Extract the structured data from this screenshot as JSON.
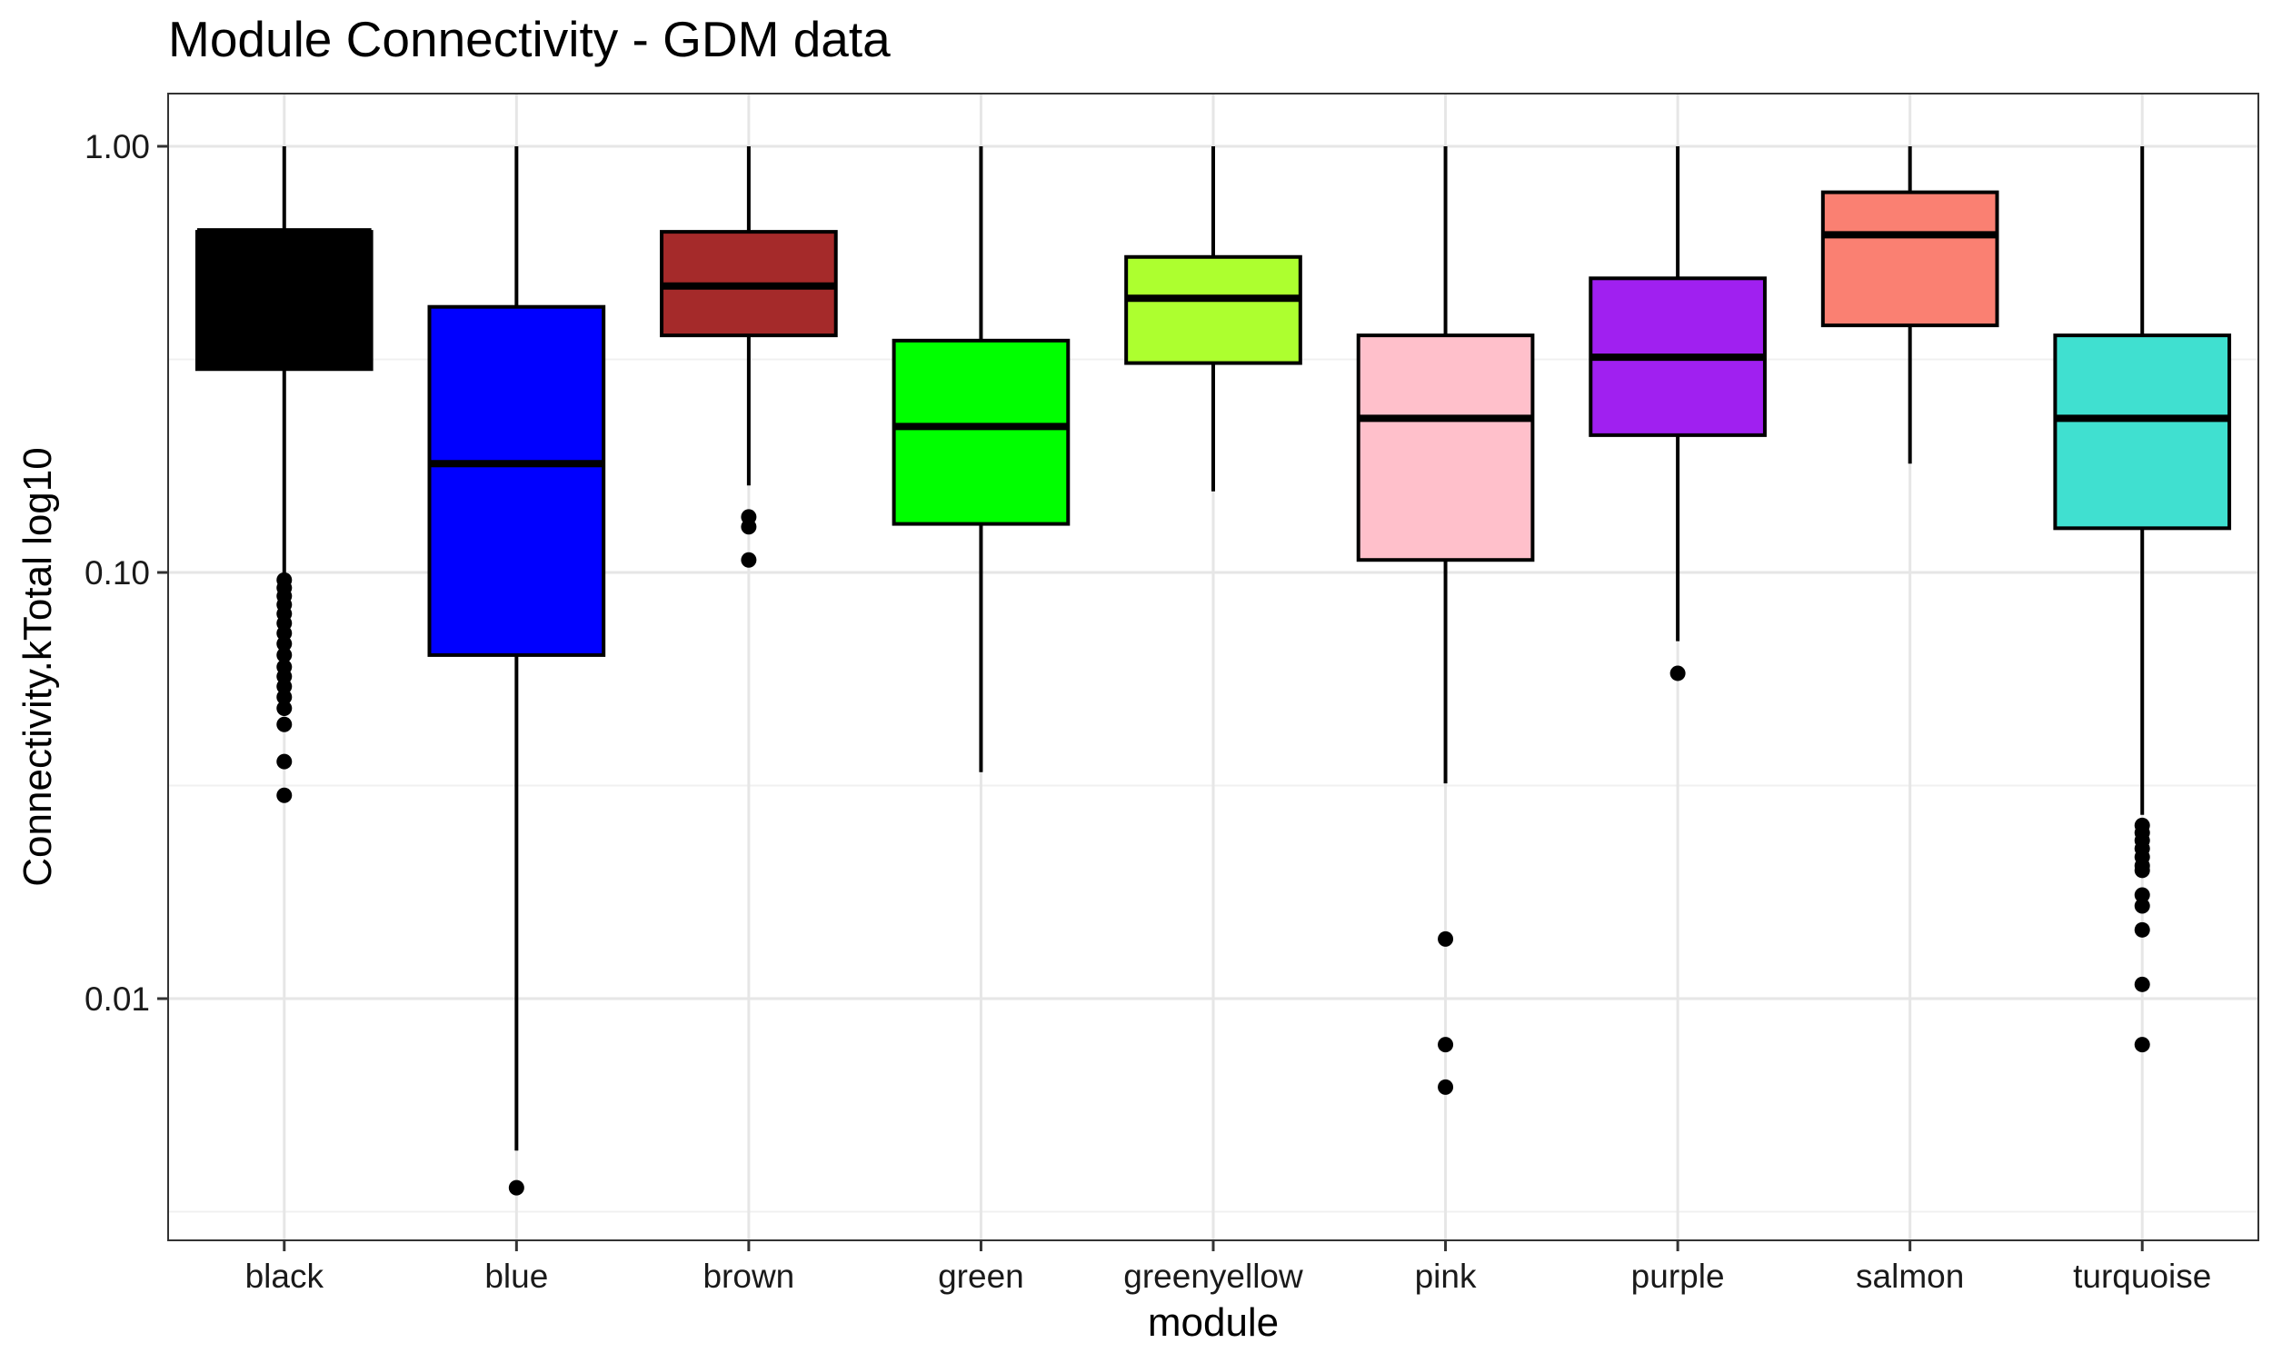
{
  "chart_data": {
    "type": "boxplot",
    "title": "Module Connectivity - GDM data",
    "xlabel": "module",
    "ylabel": "Connectivity.kTotal log10",
    "y_scale": "log10",
    "ylim": [
      0.0033,
      1.3
    ],
    "y_ticks": [
      1.0,
      0.1,
      0.01
    ],
    "y_tick_labels": [
      "1.00",
      "0.10",
      "0.01"
    ],
    "grid": true,
    "legend": "none",
    "categories": [
      "black",
      "blue",
      "brown",
      "green",
      "greenyellow",
      "pink",
      "purple",
      "salmon",
      "turquoise"
    ],
    "colors": [
      "#000000",
      "#0000ff",
      "#a52a2a",
      "#00ff00",
      "#adff2f",
      "#ffc0cb",
      "#a020f0",
      "#fa8072",
      "#40e0d0"
    ],
    "boxes": [
      {
        "category": "black",
        "whisker_low": 0.098,
        "q1": 0.3,
        "median": 0.63,
        "q3": 0.63,
        "whisker_high": 1.0,
        "outliers": [
          0.096,
          0.092,
          0.088,
          0.084,
          0.08,
          0.076,
          0.072,
          0.068,
          0.064,
          0.06,
          0.057,
          0.054,
          0.051,
          0.048,
          0.044,
          0.036,
          0.03
        ]
      },
      {
        "category": "blue",
        "whisker_low": 0.0044,
        "q1": 0.064,
        "median": 0.18,
        "q3": 0.42,
        "whisker_high": 1.0,
        "outliers": [
          0.0036
        ]
      },
      {
        "category": "brown",
        "whisker_low": 0.16,
        "q1": 0.36,
        "median": 0.47,
        "q3": 0.63,
        "whisker_high": 1.0,
        "outliers": [
          0.135,
          0.128,
          0.107
        ]
      },
      {
        "category": "green",
        "whisker_low": 0.034,
        "q1": 0.13,
        "median": 0.22,
        "q3": 0.35,
        "whisker_high": 1.0,
        "outliers": []
      },
      {
        "category": "greenyellow",
        "whisker_low": 0.155,
        "q1": 0.31,
        "median": 0.44,
        "q3": 0.55,
        "whisker_high": 1.0,
        "outliers": []
      },
      {
        "category": "pink",
        "whisker_low": 0.032,
        "q1": 0.107,
        "median": 0.23,
        "q3": 0.36,
        "whisker_high": 1.0,
        "outliers": [
          0.0138,
          0.0078,
          0.0062
        ]
      },
      {
        "category": "purple",
        "whisker_low": 0.069,
        "q1": 0.21,
        "median": 0.32,
        "q3": 0.49,
        "whisker_high": 1.0,
        "outliers": [
          0.058
        ]
      },
      {
        "category": "salmon",
        "whisker_low": 0.18,
        "q1": 0.38,
        "median": 0.62,
        "q3": 0.78,
        "whisker_high": 1.0,
        "outliers": []
      },
      {
        "category": "turquoise",
        "whisker_low": 0.027,
        "q1": 0.127,
        "median": 0.23,
        "q3": 0.36,
        "whisker_high": 1.0,
        "outliers": [
          0.0255,
          0.0245,
          0.0235,
          0.0225,
          0.0215,
          0.0205,
          0.02,
          0.0175,
          0.0165,
          0.0145,
          0.0108,
          0.0078
        ]
      }
    ]
  }
}
